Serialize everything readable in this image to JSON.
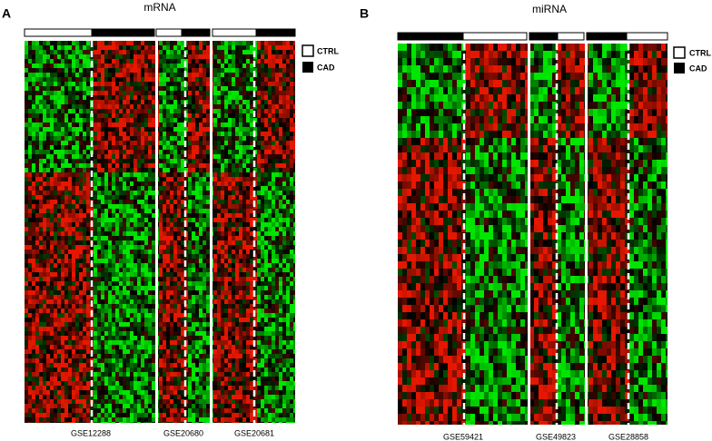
{
  "panels": [
    {
      "label": "A",
      "title": "mRNA",
      "datasets": [
        "GSE12288",
        "GSE20680",
        "GSE20681"
      ]
    },
    {
      "label": "B",
      "title": "miRNA",
      "datasets": [
        "GSE59421",
        "GSE49823",
        "GSE28858"
      ]
    }
  ],
  "legend": {
    "ctrl": "CTRL",
    "cad": "CAD"
  }
}
